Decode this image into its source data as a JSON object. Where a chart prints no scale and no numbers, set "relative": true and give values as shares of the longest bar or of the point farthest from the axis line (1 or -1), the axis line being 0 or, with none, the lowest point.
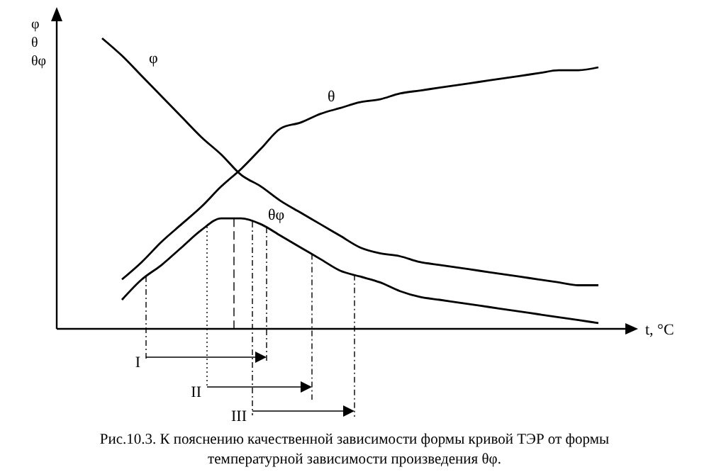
{
  "chart_data": {
    "type": "line",
    "relative": true,
    "xlabel": "t, °C",
    "ylabel": "φ\nθ\nθφ",
    "categories": [
      null,
      null,
      null,
      null,
      null,
      null,
      null,
      null,
      null,
      null,
      null,
      null,
      null,
      null,
      null,
      null,
      null,
      null,
      null,
      null,
      null,
      null,
      null,
      null,
      null,
      null
    ],
    "series": [
      {
        "name": "φ",
        "color": "#000000",
        "values": [
          1.0,
          0.94,
          0.87,
          0.8,
          0.73,
          0.66,
          0.6,
          0.53,
          0.49,
          0.44,
          0.4,
          0.36,
          0.32,
          0.28,
          0.26,
          0.25,
          0.23,
          0.22,
          0.21,
          0.2,
          0.19,
          0.18,
          0.17,
          0.16,
          0.15,
          0.15
        ]
      },
      {
        "name": "θ",
        "color": "#000000",
        "values": [
          null,
          0.17,
          0.23,
          0.3,
          0.36,
          0.42,
          0.49,
          0.55,
          0.62,
          0.69,
          0.71,
          0.74,
          0.76,
          0.78,
          0.79,
          0.81,
          0.82,
          0.83,
          0.84,
          0.85,
          0.86,
          0.87,
          0.88,
          0.89,
          0.89,
          0.9
        ]
      },
      {
        "name": "θφ",
        "color": "#000000",
        "values": [
          null,
          0.1,
          0.17,
          0.22,
          0.28,
          0.34,
          0.38,
          0.38,
          0.36,
          0.32,
          0.28,
          0.24,
          0.2,
          0.18,
          0.16,
          0.13,
          0.11,
          0.1,
          0.09,
          0.08,
          0.07,
          0.06,
          0.05,
          0.04,
          0.03,
          0.02
        ]
      }
    ],
    "annotations": [
      "I",
      "II",
      "III",
      "Рис.10.3.  К пояснению качественной зависимости формы кривой ТЭР от формы\nтемпературной  зависимости  произведения θφ."
    ]
  }
}
